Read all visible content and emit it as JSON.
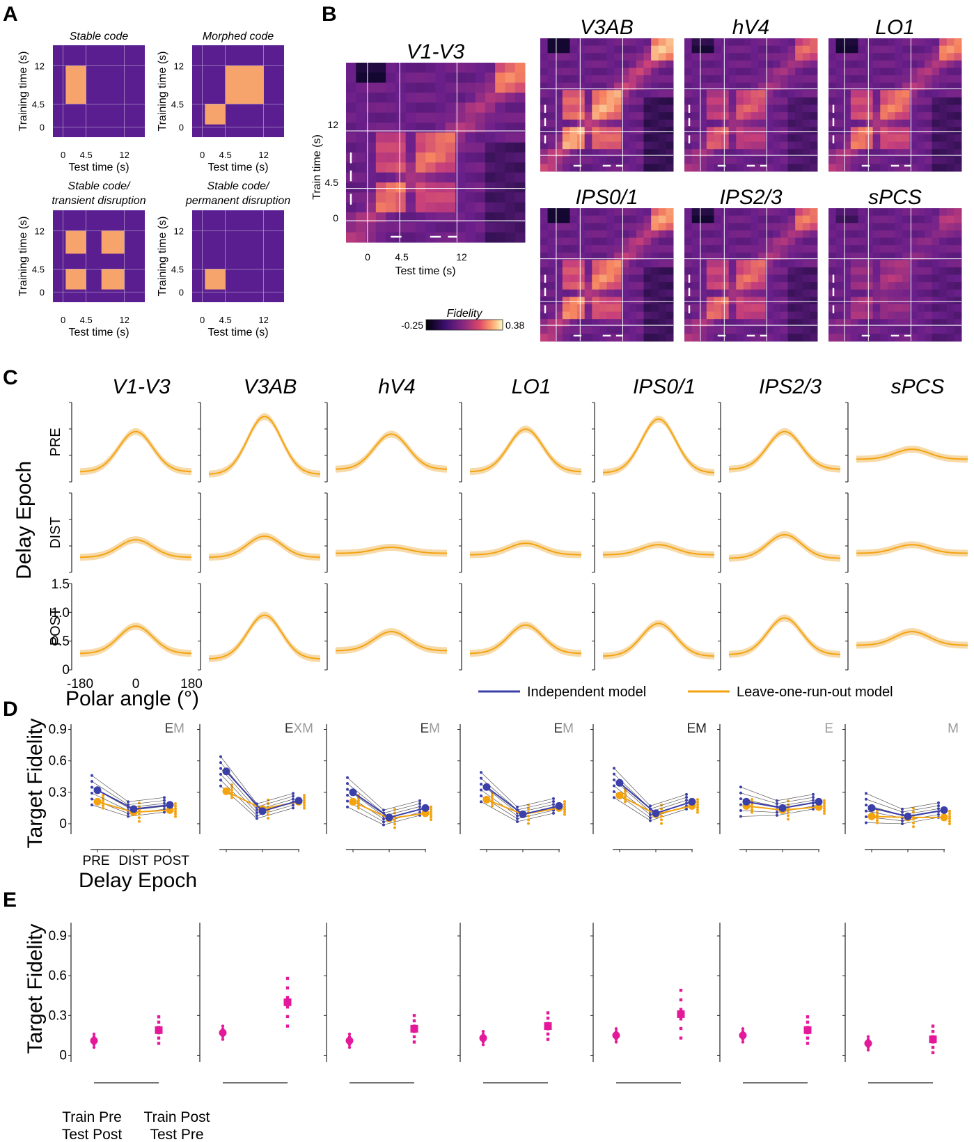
{
  "panels": {
    "a": "A",
    "b": "B",
    "c": "C",
    "d": "D",
    "e": "E"
  },
  "panel_a": {
    "schematics": [
      {
        "title": "Stable code",
        "blocks": [
          [
            0.5,
            4.5,
            4.5,
            12
          ]
        ]
      },
      {
        "title": "Morphed code",
        "blocks": [
          [
            0.5,
            4.5,
            0.5,
            4.5
          ],
          [
            4.5,
            12,
            4.5,
            12
          ]
        ]
      },
      {
        "title": "Stable code/\ntransient disruption",
        "blocks": [
          [
            0.5,
            4.5,
            0.5,
            4.5
          ],
          [
            7.5,
            12,
            0.5,
            4.5
          ],
          [
            0.5,
            4.5,
            7.5,
            12
          ],
          [
            7.5,
            12,
            7.5,
            12
          ]
        ]
      },
      {
        "title": "Stable code/\npermanent disruption",
        "blocks": [
          [
            0.5,
            4.5,
            0.5,
            4.5
          ]
        ]
      }
    ],
    "ylabel": "Training time (s)",
    "xlabel": "Test time (s)",
    "ticks": [
      "0",
      "4.5",
      "12"
    ],
    "colors": {
      "bg": "#5a1e91",
      "block": "#f7a46c"
    }
  },
  "panel_b": {
    "main_title": "V1-V3",
    "titles": [
      "V3AB",
      "hV4",
      "LO1",
      "IPS0/1",
      "IPS2/3",
      "sPCS"
    ],
    "ylabel": "Train time (s)",
    "xlabel": "Test time (s)",
    "ticks": [
      "0",
      "4.5",
      "12"
    ],
    "colorbar": {
      "label": "Fidelity",
      "min": "-0.25",
      "max": "0.38"
    }
  },
  "panel_c": {
    "ylabel": "Delay Epoch",
    "rows": [
      "PRE",
      "DIST",
      "POST"
    ],
    "rois": [
      "V1-V3",
      "V3AB",
      "hV4",
      "LO1",
      "IPS0/1",
      "IPS2/3",
      "sPCS"
    ],
    "yticks": [
      "0",
      "0.5",
      "1.0",
      "1.5"
    ],
    "xticks": [
      "-180",
      "0",
      "180"
    ],
    "xlabel": "Polar angle (°)",
    "legend": [
      "Independent model",
      "Leave-one-run-out model"
    ],
    "chart_data": {
      "type": "line",
      "x_range": [
        -180,
        180
      ],
      "ylim": [
        0,
        1.5
      ],
      "curves": {
        "PRE": [
          [
            0.2,
            1.0
          ],
          [
            0.15,
            1.3
          ],
          [
            0.25,
            0.95
          ],
          [
            0.2,
            1.05
          ],
          [
            0.18,
            1.25
          ],
          [
            0.25,
            1.0
          ],
          [
            0.45,
            0.65
          ]
        ],
        "DIST": [
          [
            0.3,
            0.65
          ],
          [
            0.3,
            0.72
          ],
          [
            0.38,
            0.5
          ],
          [
            0.35,
            0.58
          ],
          [
            0.35,
            0.55
          ],
          [
            0.28,
            0.75
          ],
          [
            0.38,
            0.55
          ]
        ],
        "POST": [
          [
            0.3,
            0.8
          ],
          [
            0.2,
            1.0
          ],
          [
            0.35,
            0.7
          ],
          [
            0.3,
            0.82
          ],
          [
            0.25,
            0.85
          ],
          [
            0.28,
            0.95
          ],
          [
            0.45,
            0.7
          ]
        ]
      }
    },
    "colors": {
      "blue": "#3b3fa8",
      "orange": "#f4a30f",
      "band": "#f6d39a"
    }
  },
  "panel_d": {
    "ylabel": "Target Fidelity",
    "xlabel": "Delay Epoch",
    "xticks": [
      "PRE",
      "DIST",
      "POST"
    ],
    "yticks": [
      "0",
      "0.3",
      "0.6",
      "0.9"
    ],
    "letters": [
      [
        [
          "E",
          "#333"
        ],
        [
          "M",
          "#999"
        ]
      ],
      [
        [
          "E",
          "#333"
        ],
        [
          "XM",
          "#999"
        ]
      ],
      [
        [
          "E",
          "#333"
        ],
        [
          "M",
          "#999"
        ]
      ],
      [
        [
          "E",
          "#333"
        ],
        [
          "M",
          "#999"
        ]
      ],
      [
        [
          "EM",
          "#222"
        ]
      ],
      [
        [
          "E",
          "#999"
        ]
      ],
      [
        [
          "M",
          "#999"
        ]
      ]
    ],
    "chart_data": {
      "type": "line",
      "categories": [
        "PRE",
        "DIST",
        "POST"
      ],
      "ylim": [
        -0.1,
        0.95
      ],
      "independent": [
        [
          0.32,
          0.14,
          0.18
        ],
        [
          0.5,
          0.12,
          0.22
        ],
        [
          0.3,
          0.06,
          0.15
        ],
        [
          0.35,
          0.09,
          0.17
        ],
        [
          0.39,
          0.1,
          0.21
        ],
        [
          0.21,
          0.15,
          0.21
        ],
        [
          0.15,
          0.07,
          0.13
        ]
      ],
      "leave_one_out": [
        [
          0.21,
          0.11,
          0.13
        ],
        [
          0.31,
          0.14,
          0.21
        ],
        [
          0.21,
          0.05,
          0.1
        ],
        [
          0.23,
          0.09,
          0.15
        ],
        [
          0.27,
          0.09,
          0.17
        ],
        [
          0.17,
          0.13,
          0.16
        ],
        [
          0.07,
          0.06,
          0.06
        ]
      ]
    }
  },
  "panel_e": {
    "ylabel": "Target Fidelity",
    "yticks": [
      "0",
      "0.3",
      "0.6",
      "0.9"
    ],
    "xlabels": [
      [
        "Train Pre",
        "Test Post"
      ],
      [
        "Train Post",
        "Test Pre"
      ]
    ],
    "chart_data": {
      "type": "scatter",
      "ylim": [
        -0.05,
        1.0
      ],
      "means": [
        [
          0.11,
          0.19
        ],
        [
          0.17,
          0.4
        ],
        [
          0.11,
          0.2
        ],
        [
          0.13,
          0.22
        ],
        [
          0.15,
          0.31
        ],
        [
          0.15,
          0.19
        ],
        [
          0.09,
          0.12
        ]
      ],
      "color": "#e4199a"
    }
  }
}
